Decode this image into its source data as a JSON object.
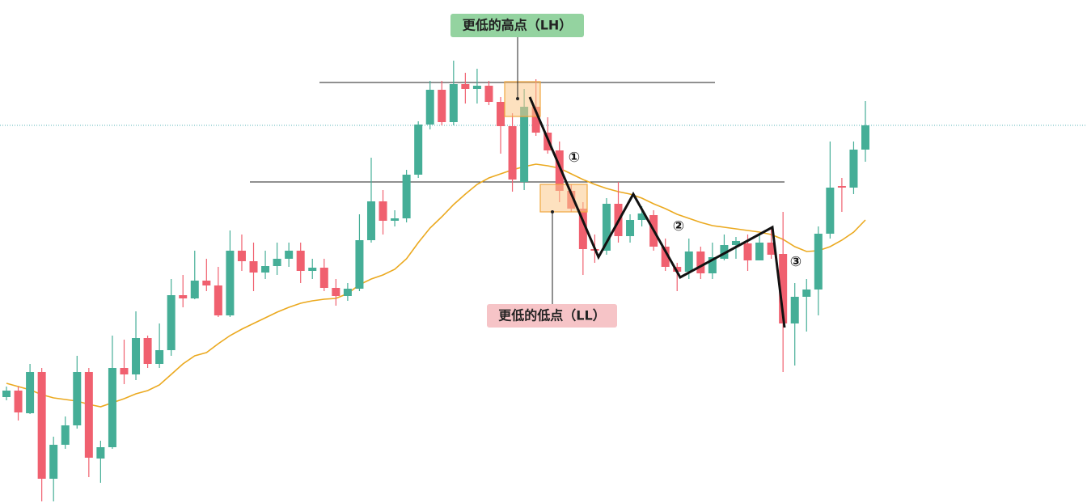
{
  "chart_data": {
    "type": "candlestick",
    "ylim": [
      0,
      622
    ],
    "up_color": "#45ae97",
    "down_color": "#f0606f",
    "open": [
      131,
      139,
      111,
      162,
      30,
      72,
      96,
      162,
      55,
      69,
      167,
      159,
      204,
      172,
      189,
      257,
      253,
      275,
      269,
      232,
      312,
      299,
      285,
      293,
      302,
      312,
      287,
      291,
      266,
      256,
      265,
      325,
      373,
      349,
      352,
      406,
      468,
      511,
      471,
      518,
      512,
      516,
      496,
      466,
      397,
      490,
      458,
      436,
      386,
      364,
      314,
      312,
      370,
      330,
      350,
      356,
      317,
      292,
      286,
      311,
      284,
      302,
      319,
      321,
      300,
      322,
      308,
      222,
      255,
      264,
      333,
      392,
      390,
      437
    ],
    "high": [
      144,
      144,
      172,
      167,
      82,
      107,
      182,
      167,
      77,
      207,
      202,
      237,
      207,
      222,
      277,
      282,
      312,
      302,
      292,
      337,
      332,
      322,
      312,
      322,
      322,
      322,
      302,
      302,
      277,
      272,
      357,
      427,
      387,
      362,
      412,
      472,
      522,
      522,
      547,
      532,
      537,
      522,
      502,
      482,
      512,
      524,
      477,
      447,
      394,
      372,
      332,
      377,
      397,
      357,
      367,
      362,
      327,
      297,
      327,
      317,
      322,
      332,
      329,
      332,
      332,
      342,
      360,
      272,
      277,
      342,
      447,
      402,
      447,
      497
    ],
    "low": [
      127,
      102,
      110,
      2,
      2,
      67,
      92,
      32,
      25,
      67,
      147,
      152,
      167,
      167,
      182,
      242,
      252,
      262,
      230,
      230,
      287,
      262,
      277,
      282,
      292,
      272,
      277,
      262,
      244,
      250,
      262,
      322,
      332,
      342,
      347,
      402,
      462,
      467,
      467,
      494,
      494,
      492,
      432,
      385,
      387,
      454,
      432,
      372,
      360,
      282,
      297,
      307,
      322,
      322,
      342,
      312,
      287,
      262,
      277,
      277,
      277,
      300,
      302,
      287,
      300,
      302,
      162,
      170,
      212,
      232,
      327,
      360,
      382,
      422
    ],
    "close": [
      139,
      112,
      162,
      30,
      72,
      96,
      162,
      56,
      69,
      167,
      159,
      204,
      172,
      189,
      257,
      253,
      275,
      269,
      232,
      312,
      299,
      285,
      293,
      302,
      312,
      287,
      291,
      266,
      256,
      265,
      325,
      373,
      349,
      352,
      406,
      468,
      511,
      471,
      518,
      512,
      516,
      496,
      466,
      400,
      490,
      458,
      436,
      386,
      364,
      314,
      312,
      370,
      330,
      350,
      358,
      317,
      292,
      286,
      311,
      284,
      304,
      319,
      324,
      300,
      322,
      307,
      222,
      255,
      264,
      333,
      390,
      390,
      437,
      467
    ],
    "ma": {
      "color": "#eba91f",
      "values": [
        148,
        144,
        140,
        134,
        130,
        128,
        126,
        122,
        119,
        124,
        129,
        135,
        139,
        146,
        159,
        172,
        182,
        186,
        197,
        207,
        215,
        222,
        229,
        236,
        242,
        247,
        250,
        252,
        253,
        259,
        270,
        277,
        282,
        289,
        302,
        322,
        340,
        354,
        369,
        382,
        394,
        402,
        407,
        412,
        416,
        419,
        417,
        414,
        407,
        400,
        394,
        389,
        385,
        382,
        377,
        370,
        364,
        357,
        352,
        347,
        343,
        341,
        339,
        337,
        335,
        332,
        326,
        317,
        311,
        312,
        317,
        325,
        335,
        350
      ]
    },
    "annotations": [
      "更低的高点（LH）",
      "更低的低点（LL）",
      "①",
      "②",
      "③"
    ]
  }
}
